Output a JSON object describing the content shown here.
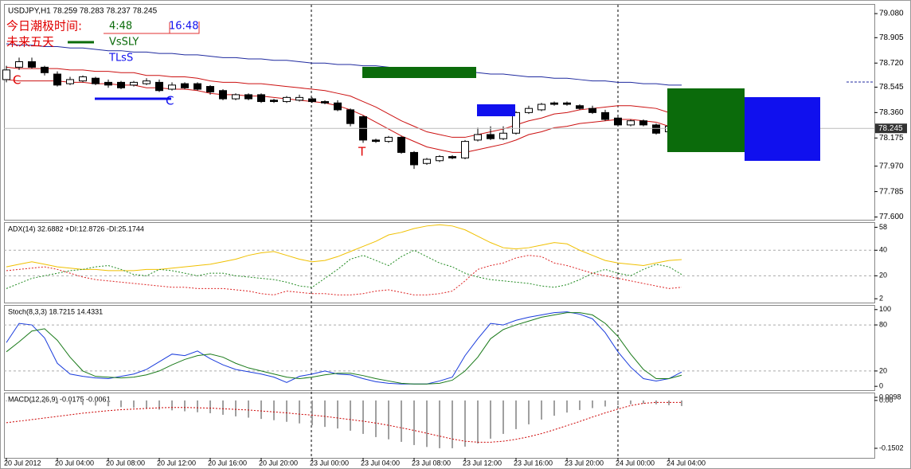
{
  "chart_data": [
    {
      "type": "candlestick",
      "title": "USDJPY,H1 78.259 78.283 78.237 78.245",
      "categories": [
        "20 Jul 2012",
        null,
        null,
        null,
        "20 Jul 04:00",
        null,
        null,
        null,
        "20 Jul 08:00",
        null,
        null,
        null,
        "20 Jul 12:00",
        null,
        null,
        null,
        "20 Jul 16:00",
        null,
        null,
        null,
        "20 Jul 20:00",
        null,
        null,
        null,
        "23 Jul 00:00",
        null,
        null,
        null,
        "23 Jul 04:00",
        null,
        null,
        null,
        "23 Jul 08:00",
        null,
        null,
        null,
        "23 Jul 12:00",
        null,
        null,
        null,
        "23 Jul 16:00",
        null,
        null,
        null,
        "23 Jul 20:00",
        null,
        null,
        null,
        "24 Jul 00:00",
        null,
        null,
        null,
        "24 Jul 04:00",
        null
      ],
      "open": [
        78.6,
        78.69,
        78.73,
        78.69,
        78.64,
        78.57,
        78.59,
        78.61,
        78.58,
        78.58,
        78.56,
        78.57,
        78.58,
        78.53,
        78.57,
        78.57,
        78.55,
        78.52,
        78.46,
        78.49,
        78.49,
        78.45,
        78.44,
        78.45,
        78.46,
        78.44,
        78.43,
        78.38,
        78.33,
        78.16,
        78.15,
        78.18,
        78.07,
        77.99,
        78.01,
        78.04,
        78.03,
        78.16,
        78.2,
        78.17,
        78.21,
        78.36,
        78.38,
        78.43,
        78.43,
        78.41,
        78.39,
        78.36,
        78.32,
        78.27,
        78.3,
        78.27,
        78.22,
        78.259
      ],
      "high": [
        78.7,
        78.76,
        78.76,
        78.7,
        78.66,
        78.62,
        78.63,
        78.62,
        78.6,
        78.59,
        78.59,
        78.61,
        78.6,
        78.58,
        78.58,
        78.58,
        78.56,
        78.53,
        78.5,
        78.5,
        78.5,
        78.46,
        78.48,
        78.49,
        78.47,
        78.45,
        78.45,
        78.39,
        78.34,
        78.17,
        78.19,
        78.19,
        78.08,
        78.03,
        78.05,
        78.05,
        78.16,
        78.25,
        78.26,
        78.26,
        78.37,
        78.41,
        78.43,
        78.44,
        78.44,
        78.42,
        78.41,
        78.38,
        78.33,
        78.31,
        78.31,
        78.28,
        78.27,
        78.283
      ],
      "low": [
        78.58,
        78.67,
        78.68,
        78.63,
        78.55,
        78.56,
        78.58,
        78.56,
        78.54,
        78.53,
        78.55,
        78.56,
        78.51,
        78.52,
        78.53,
        78.52,
        78.49,
        78.45,
        78.45,
        78.45,
        78.43,
        78.43,
        78.43,
        78.44,
        78.43,
        78.42,
        78.37,
        78.26,
        78.14,
        78.14,
        78.14,
        78.06,
        77.95,
        77.98,
        78.0,
        78.02,
        78.02,
        78.15,
        78.16,
        78.16,
        78.2,
        78.35,
        78.37,
        78.41,
        78.41,
        78.38,
        78.35,
        78.3,
        78.26,
        78.26,
        78.26,
        78.2,
        78.21,
        78.237
      ],
      "close": [
        78.67,
        78.73,
        78.69,
        78.65,
        78.56,
        78.6,
        78.62,
        78.57,
        78.56,
        78.54,
        78.58,
        78.59,
        78.52,
        78.56,
        78.54,
        78.53,
        78.51,
        78.46,
        78.49,
        78.46,
        78.44,
        78.44,
        78.47,
        78.47,
        78.44,
        78.43,
        78.38,
        78.28,
        78.16,
        78.15,
        78.18,
        78.07,
        77.98,
        78.02,
        78.04,
        78.03,
        78.15,
        78.2,
        78.17,
        78.21,
        78.36,
        78.39,
        78.42,
        78.42,
        78.42,
        78.39,
        78.36,
        78.31,
        78.27,
        78.3,
        78.27,
        78.21,
        78.26,
        78.245
      ],
      "series": [
        {
          "color": "#1f2a9f",
          "values": [
            78.86,
            78.85,
            78.85,
            78.84,
            78.84,
            78.83,
            78.83,
            78.82,
            78.81,
            78.81,
            78.8,
            78.8,
            78.79,
            78.79,
            78.78,
            78.78,
            78.77,
            78.76,
            78.76,
            78.75,
            78.75,
            78.74,
            78.74,
            78.73,
            78.72,
            78.72,
            78.71,
            78.71,
            78.7,
            78.7,
            78.69,
            78.68,
            78.68,
            78.67,
            78.67,
            78.66,
            78.66,
            78.65,
            78.64,
            78.64,
            78.63,
            78.62,
            78.62,
            78.61,
            78.61,
            78.6,
            78.59,
            78.59,
            78.58,
            78.58,
            78.57,
            78.57,
            78.56,
            78.56
          ]
        },
        {
          "color": "#cc1111",
          "values": [
            78.69,
            78.68,
            78.68,
            78.68,
            78.68,
            78.67,
            78.67,
            78.66,
            78.66,
            78.65,
            78.65,
            78.63,
            78.63,
            78.62,
            78.62,
            78.61,
            78.59,
            78.58,
            78.58,
            78.57,
            78.57,
            78.56,
            78.55,
            78.54,
            78.53,
            78.52,
            78.5,
            78.48,
            78.44,
            78.4,
            78.35,
            78.3,
            78.26,
            78.22,
            78.2,
            78.18,
            78.18,
            78.2,
            78.22,
            78.24,
            78.27,
            78.3,
            78.32,
            78.35,
            78.36,
            78.38,
            78.39,
            78.4,
            78.41,
            78.41,
            78.4,
            78.39,
            78.36,
            78.34
          ]
        },
        {
          "color": "#cc1111",
          "values": [
            78.6,
            78.59,
            78.59,
            78.59,
            78.59,
            78.58,
            78.58,
            78.57,
            78.57,
            78.56,
            78.56,
            78.54,
            78.54,
            78.53,
            78.53,
            78.52,
            78.5,
            78.49,
            78.49,
            78.48,
            78.48,
            78.47,
            78.46,
            78.45,
            78.44,
            78.43,
            78.41,
            78.38,
            78.34,
            78.29,
            78.24,
            78.19,
            78.15,
            78.11,
            78.09,
            78.07,
            78.07,
            78.09,
            78.11,
            78.13,
            78.16,
            78.2,
            78.22,
            78.25,
            78.26,
            78.28,
            78.29,
            78.3,
            78.31,
            78.31,
            78.3,
            78.29,
            78.26,
            78.24
          ]
        }
      ],
      "annotations": [
        "今日潮极时间:",
        "4:48",
        "16:48",
        "未来五天",
        "VsSLY",
        "TLsS",
        "C",
        "C",
        "T"
      ],
      "ylim": [
        77.58,
        79.15
      ],
      "yticks": [
        {
          "value": 79.08,
          "label": "79.080"
        },
        {
          "value": 78.905,
          "label": "78.905"
        },
        {
          "value": 78.72,
          "label": "78.720"
        },
        {
          "value": 78.545,
          "label": "78.545"
        },
        {
          "value": 78.36,
          "label": "78.360"
        },
        {
          "value": 78.175,
          "label": "78.175"
        },
        {
          "value": 77.97,
          "label": "77.970"
        },
        {
          "value": 77.785,
          "label": "77.785"
        },
        {
          "value": 77.6,
          "label": "77.600"
        }
      ],
      "grid": false
    },
    {
      "type": "line",
      "title": "ADX(14) 32.6882 +DI:12.8726 -DI:25.1744",
      "series": [
        {
          "color": "#f0c000",
          "dash": false,
          "values": [
            27,
            29,
            31,
            29,
            27,
            26,
            25,
            25,
            24,
            24,
            24,
            25,
            25,
            26,
            27,
            28,
            29,
            31,
            33,
            36,
            38,
            39,
            36,
            33,
            31,
            32,
            35,
            39,
            43,
            47,
            52,
            54,
            57,
            59,
            60,
            59,
            56,
            51,
            46,
            42,
            41,
            42,
            44,
            46,
            45,
            40,
            36,
            32,
            30,
            29,
            28,
            30,
            32,
            32.69
          ]
        },
        {
          "color": "#228b22",
          "dash": true,
          "values": [
            10,
            14,
            18,
            20,
            22,
            24,
            25,
            27,
            28,
            25,
            21,
            20,
            25,
            24,
            22,
            20,
            22,
            22,
            20,
            19,
            18,
            17,
            15,
            12,
            11,
            18,
            25,
            33,
            36,
            32,
            28,
            35,
            40,
            35,
            30,
            27,
            22,
            19,
            17,
            16,
            15,
            14,
            12,
            11,
            13,
            17,
            22,
            25,
            22,
            20,
            25,
            29,
            27,
            21
          ]
        },
        {
          "color": "#dd2222",
          "dash": true,
          "values": [
            24,
            25,
            26,
            27,
            25,
            22,
            19,
            17,
            16,
            15,
            14,
            13,
            12,
            11,
            11,
            10,
            10,
            10,
            9,
            8,
            6,
            5,
            8,
            7,
            6,
            6,
            5,
            5,
            6,
            8,
            9,
            7,
            5,
            5,
            6,
            8,
            16,
            25,
            28,
            30,
            34,
            36,
            35,
            30,
            28,
            25,
            22,
            20,
            18,
            16,
            14,
            12,
            10,
            11
          ]
        }
      ],
      "ylim": [
        -1,
        62
      ],
      "yticks": [
        58,
        40,
        20,
        2
      ],
      "grid": true
    },
    {
      "type": "line",
      "title": "Stoch(8,3,3) 18.7215 14.4331",
      "series": [
        {
          "color": "#1a3cdc",
          "dash": false,
          "values": [
            57,
            82,
            80,
            63,
            30,
            16,
            13,
            11,
            10,
            13,
            16,
            22,
            32,
            42,
            40,
            46,
            36,
            28,
            22,
            19,
            16,
            12,
            5,
            13,
            16,
            20,
            16,
            15,
            10,
            6,
            4,
            3,
            3,
            3,
            7,
            12,
            40,
            62,
            82,
            80,
            86,
            90,
            93,
            96,
            97,
            94,
            88,
            70,
            45,
            25,
            10,
            7,
            10,
            18.72
          ]
        },
        {
          "color": "#1a7a1a",
          "dash": false,
          "values": [
            45,
            58,
            72,
            75,
            60,
            38,
            20,
            13,
            12,
            11,
            12,
            15,
            20,
            28,
            35,
            40,
            42,
            38,
            30,
            24,
            20,
            16,
            12,
            10,
            12,
            15,
            17,
            17,
            14,
            10,
            7,
            4,
            3,
            3,
            4,
            8,
            20,
            38,
            62,
            74,
            80,
            85,
            90,
            93,
            96,
            96,
            93,
            82,
            65,
            42,
            22,
            10,
            10,
            14.43
          ]
        }
      ],
      "ylim": [
        -5,
        106
      ],
      "yticks": [
        100,
        80,
        20,
        0
      ],
      "grid": true
    },
    {
      "type": "bar",
      "title": "MACD(12,26,9) -0.0175 -0.0061",
      "color": "#a0a0a0",
      "values": [
        -0.002,
        -0.004,
        -0.006,
        -0.008,
        -0.01,
        -0.012,
        -0.014,
        -0.016,
        -0.018,
        -0.021,
        -0.023,
        -0.026,
        -0.029,
        -0.031,
        -0.034,
        -0.037,
        -0.04,
        -0.045,
        -0.05,
        -0.054,
        -0.058,
        -0.062,
        -0.067,
        -0.072,
        -0.078,
        -0.083,
        -0.088,
        -0.095,
        -0.105,
        -0.115,
        -0.122,
        -0.13,
        -0.14,
        -0.146,
        -0.15,
        -0.15,
        -0.145,
        -0.135,
        -0.12,
        -0.105,
        -0.09,
        -0.075,
        -0.06,
        -0.048,
        -0.038,
        -0.03,
        -0.024,
        -0.019,
        -0.015,
        -0.012,
        -0.01,
        -0.012,
        -0.015,
        -0.0175
      ],
      "series": [
        {
          "color": "#cc0000",
          "dash": true,
          "values": [
            -0.07,
            -0.065,
            -0.06,
            -0.055,
            -0.05,
            -0.045,
            -0.04,
            -0.036,
            -0.032,
            -0.029,
            -0.027,
            -0.025,
            -0.023,
            -0.022,
            -0.022,
            -0.023,
            -0.024,
            -0.026,
            -0.028,
            -0.03,
            -0.033,
            -0.036,
            -0.039,
            -0.043,
            -0.046,
            -0.05,
            -0.055,
            -0.06,
            -0.065,
            -0.071,
            -0.078,
            -0.086,
            -0.094,
            -0.103,
            -0.112,
            -0.121,
            -0.128,
            -0.131,
            -0.131,
            -0.128,
            -0.122,
            -0.114,
            -0.104,
            -0.092,
            -0.079,
            -0.066,
            -0.052,
            -0.039,
            -0.027,
            -0.016,
            -0.009,
            -0.006,
            -0.006,
            -0.0061
          ]
        }
      ],
      "ylim": [
        -0.1802,
        0.0248
      ],
      "yticks": [
        0.0098,
        {
          "value": 0,
          "label": "0.00"
        },
        -0.1502
      ],
      "grid": false
    }
  ]
}
